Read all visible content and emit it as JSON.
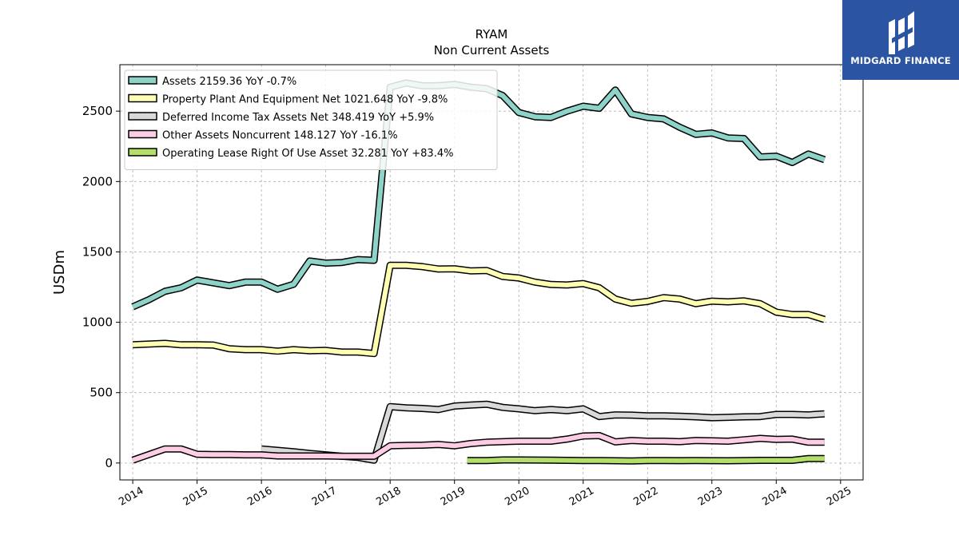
{
  "brand": {
    "name": "MIDGARD FINANCE",
    "background": "#2b55a3"
  },
  "chart_data": {
    "type": "line",
    "title": "RYAM",
    "subtitle": "Non Current  Assets",
    "ylabel": "USDm",
    "xlabel": "",
    "xlim": [
      2013.8,
      2025.35
    ],
    "ylim": [
      -120,
      2830
    ],
    "x_ticks": [
      2014,
      2015,
      2016,
      2017,
      2018,
      2019,
      2020,
      2021,
      2022,
      2023,
      2024,
      2025
    ],
    "y_ticks": [
      0,
      500,
      1000,
      1500,
      2000,
      2500
    ],
    "grid": true,
    "legend_position": "top-left",
    "series": [
      {
        "name": "Assets  2159.36 YoY -0.7%",
        "color": "#8dd3c7",
        "points": [
          [
            2014.0,
            1110
          ],
          [
            2014.25,
            1160
          ],
          [
            2014.5,
            1220
          ],
          [
            2014.75,
            1245
          ],
          [
            2015.0,
            1300
          ],
          [
            2015.25,
            1280
          ],
          [
            2015.5,
            1260
          ],
          [
            2015.75,
            1285
          ],
          [
            2016.0,
            1285
          ],
          [
            2016.25,
            1235
          ],
          [
            2016.5,
            1270
          ],
          [
            2016.75,
            1435
          ],
          [
            2017.0,
            1420
          ],
          [
            2017.25,
            1425
          ],
          [
            2017.5,
            1445
          ],
          [
            2017.75,
            1440
          ],
          [
            2018.0,
            2670
          ],
          [
            2018.25,
            2700
          ],
          [
            2018.5,
            2680
          ],
          [
            2018.75,
            2680
          ],
          [
            2019.0,
            2690
          ],
          [
            2019.25,
            2670
          ],
          [
            2019.5,
            2660
          ],
          [
            2019.75,
            2610
          ],
          [
            2020.0,
            2490
          ],
          [
            2020.25,
            2460
          ],
          [
            2020.5,
            2455
          ],
          [
            2020.75,
            2500
          ],
          [
            2021.0,
            2535
          ],
          [
            2021.25,
            2520
          ],
          [
            2021.5,
            2650
          ],
          [
            2021.75,
            2480
          ],
          [
            2022.0,
            2455
          ],
          [
            2022.25,
            2445
          ],
          [
            2022.5,
            2385
          ],
          [
            2022.75,
            2335
          ],
          [
            2023.0,
            2345
          ],
          [
            2023.25,
            2310
          ],
          [
            2023.5,
            2305
          ],
          [
            2023.75,
            2175
          ],
          [
            2024.0,
            2180
          ],
          [
            2024.25,
            2135
          ],
          [
            2024.5,
            2195
          ],
          [
            2024.75,
            2155
          ]
        ]
      },
      {
        "name": "Property Plant And Equipment Net  1021.648 YoY -9.8%",
        "color": "#ffffb3",
        "points": [
          [
            2014.0,
            840
          ],
          [
            2014.25,
            845
          ],
          [
            2014.5,
            850
          ],
          [
            2014.75,
            840
          ],
          [
            2015.0,
            840
          ],
          [
            2015.25,
            838
          ],
          [
            2015.5,
            812
          ],
          [
            2015.75,
            805
          ],
          [
            2016.0,
            805
          ],
          [
            2016.25,
            795
          ],
          [
            2016.5,
            805
          ],
          [
            2016.75,
            798
          ],
          [
            2017.0,
            800
          ],
          [
            2017.25,
            788
          ],
          [
            2017.5,
            788
          ],
          [
            2017.75,
            778
          ],
          [
            2018.0,
            1405
          ],
          [
            2018.25,
            1405
          ],
          [
            2018.5,
            1395
          ],
          [
            2018.75,
            1378
          ],
          [
            2019.0,
            1380
          ],
          [
            2019.25,
            1365
          ],
          [
            2019.5,
            1368
          ],
          [
            2019.75,
            1325
          ],
          [
            2020.0,
            1315
          ],
          [
            2020.25,
            1285
          ],
          [
            2020.5,
            1268
          ],
          [
            2020.75,
            1265
          ],
          [
            2021.0,
            1275
          ],
          [
            2021.25,
            1245
          ],
          [
            2021.5,
            1165
          ],
          [
            2021.75,
            1135
          ],
          [
            2022.0,
            1148
          ],
          [
            2022.25,
            1175
          ],
          [
            2022.5,
            1165
          ],
          [
            2022.75,
            1132
          ],
          [
            2023.0,
            1150
          ],
          [
            2023.25,
            1145
          ],
          [
            2023.5,
            1152
          ],
          [
            2023.75,
            1132
          ],
          [
            2024.0,
            1072
          ],
          [
            2024.25,
            1055
          ],
          [
            2024.5,
            1055
          ],
          [
            2024.75,
            1020
          ]
        ]
      },
      {
        "name": "Deferred Income Tax Assets Net  348.419 YoY +5.9%",
        "color": "#d9d9d9",
        "points": [
          [
            2016.0,
            100
          ],
          [
            2016.25,
            90
          ],
          [
            2016.5,
            80
          ],
          [
            2016.75,
            68
          ],
          [
            2017.0,
            58
          ],
          [
            2017.25,
            48
          ],
          [
            2017.5,
            40
          ],
          [
            2017.75,
            20
          ],
          [
            2018.0,
            400
          ],
          [
            2018.25,
            392
          ],
          [
            2018.5,
            388
          ],
          [
            2018.75,
            380
          ],
          [
            2019.0,
            405
          ],
          [
            2019.25,
            412
          ],
          [
            2019.5,
            418
          ],
          [
            2019.75,
            395
          ],
          [
            2020.0,
            385
          ],
          [
            2020.25,
            372
          ],
          [
            2020.5,
            380
          ],
          [
            2020.75,
            372
          ],
          [
            2021.0,
            385
          ],
          [
            2021.25,
            330
          ],
          [
            2021.5,
            342
          ],
          [
            2021.75,
            340
          ],
          [
            2022.0,
            335
          ],
          [
            2022.25,
            335
          ],
          [
            2022.5,
            332
          ],
          [
            2022.75,
            328
          ],
          [
            2023.0,
            322
          ],
          [
            2023.25,
            325
          ],
          [
            2023.5,
            328
          ],
          [
            2023.75,
            330
          ],
          [
            2024.0,
            345
          ],
          [
            2024.25,
            345
          ],
          [
            2024.5,
            342
          ],
          [
            2024.75,
            350
          ]
        ]
      },
      {
        "name": "Other Assets Noncurrent  148.127 YoY -16.1%",
        "color": "#fccde5",
        "points": [
          [
            2014.0,
            20
          ],
          [
            2014.25,
            60
          ],
          [
            2014.5,
            100
          ],
          [
            2014.75,
            100
          ],
          [
            2015.0,
            62
          ],
          [
            2015.25,
            60
          ],
          [
            2015.5,
            60
          ],
          [
            2015.75,
            58
          ],
          [
            2016.0,
            58
          ],
          [
            2016.25,
            50
          ],
          [
            2016.5,
            50
          ],
          [
            2016.75,
            50
          ],
          [
            2017.0,
            50
          ],
          [
            2017.25,
            48
          ],
          [
            2017.5,
            48
          ],
          [
            2017.75,
            48
          ],
          [
            2018.0,
            122
          ],
          [
            2018.25,
            125
          ],
          [
            2018.5,
            127
          ],
          [
            2018.75,
            132
          ],
          [
            2019.0,
            122
          ],
          [
            2019.25,
            138
          ],
          [
            2019.5,
            148
          ],
          [
            2019.75,
            152
          ],
          [
            2020.0,
            155
          ],
          [
            2020.25,
            155
          ],
          [
            2020.5,
            155
          ],
          [
            2020.75,
            170
          ],
          [
            2021.0,
            192
          ],
          [
            2021.25,
            195
          ],
          [
            2021.5,
            150
          ],
          [
            2021.75,
            160
          ],
          [
            2022.0,
            155
          ],
          [
            2022.25,
            155
          ],
          [
            2022.5,
            152
          ],
          [
            2022.75,
            160
          ],
          [
            2023.0,
            158
          ],
          [
            2023.25,
            155
          ],
          [
            2023.5,
            165
          ],
          [
            2023.75,
            175
          ],
          [
            2024.0,
            168
          ],
          [
            2024.25,
            170
          ],
          [
            2024.5,
            148
          ],
          [
            2024.75,
            148
          ]
        ]
      },
      {
        "name": "Operating Lease Right Of Use Asset  32.281 YoY +83.4%",
        "color": "#b3de69",
        "points": [
          [
            2019.2,
            18
          ],
          [
            2019.5,
            18
          ],
          [
            2019.75,
            22
          ],
          [
            2020.0,
            22
          ],
          [
            2020.25,
            21
          ],
          [
            2020.5,
            20
          ],
          [
            2020.75,
            19
          ],
          [
            2021.0,
            18
          ],
          [
            2021.25,
            18
          ],
          [
            2021.5,
            16
          ],
          [
            2021.75,
            15
          ],
          [
            2022.0,
            18
          ],
          [
            2022.25,
            18
          ],
          [
            2022.5,
            17
          ],
          [
            2022.75,
            18
          ],
          [
            2023.0,
            17
          ],
          [
            2023.25,
            16
          ],
          [
            2023.5,
            18
          ],
          [
            2023.75,
            19
          ],
          [
            2024.0,
            19
          ],
          [
            2024.25,
            19
          ],
          [
            2024.5,
            32
          ],
          [
            2024.75,
            32
          ]
        ]
      }
    ]
  }
}
